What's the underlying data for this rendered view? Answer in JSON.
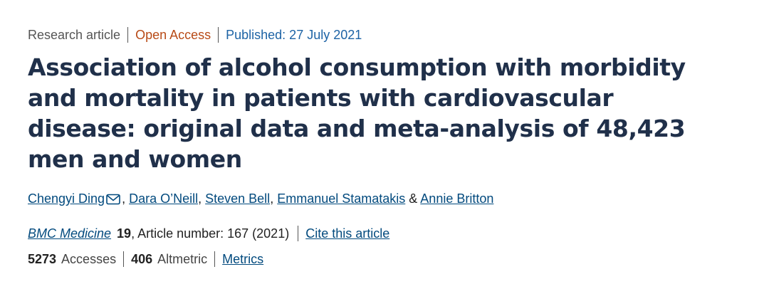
{
  "meta": {
    "article_type": "Research article",
    "access": "Open Access",
    "published": "Published: 27 July 2021"
  },
  "title": "Association of alcohol consumption with morbidity and mortality in patients with cardiovascular disease: original data and meta-analysis of 48,423 men and women",
  "authors": [
    {
      "name": "Chengyi Ding",
      "sep": ", "
    },
    {
      "name": "Dara O’Neill",
      "sep": ", "
    },
    {
      "name": "Steven Bell",
      "sep": ", "
    },
    {
      "name": "Emmanuel Stamatakis",
      "sep": " & "
    },
    {
      "name": "Annie Britton",
      "sep": ""
    }
  ],
  "citation": {
    "journal": "BMC Medicine",
    "volume": "19",
    "article_info": ", Article number: 167 (2021)",
    "cite_link": "Cite this article"
  },
  "metrics": {
    "accesses_value": "5273",
    "accesses_label": "Accesses",
    "altmetric_value": "406",
    "altmetric_label": "Altmetric",
    "metrics_link": "Metrics"
  },
  "colors": {
    "title": "#20304a",
    "open_access": "#b84a16",
    "published": "#1d63a5",
    "link": "#024a7e"
  },
  "icons": {
    "correspondence": "mail-icon"
  }
}
